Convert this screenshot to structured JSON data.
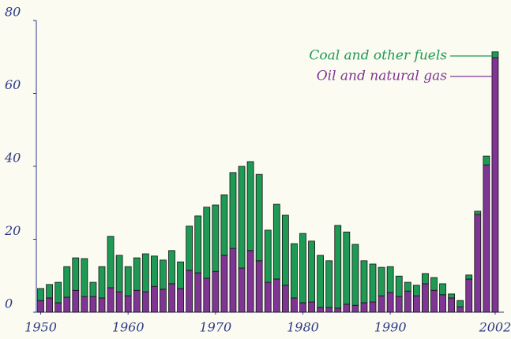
{
  "chart_data": {
    "type": "stacked_bar",
    "x": [
      1950,
      1951,
      1952,
      1953,
      1954,
      1955,
      1956,
      1957,
      1958,
      1959,
      1960,
      1961,
      1962,
      1963,
      1964,
      1965,
      1966,
      1967,
      1968,
      1969,
      1970,
      1971,
      1972,
      1973,
      1974,
      1975,
      1976,
      1977,
      1978,
      1979,
      1980,
      1981,
      1982,
      1983,
      1984,
      1985,
      1986,
      1987,
      1988,
      1989,
      1990,
      1991,
      1992,
      1993,
      1994,
      1995,
      1996,
      1997,
      1998,
      1999,
      2000,
      2001,
      2002
    ],
    "series": [
      {
        "name": "Oil and natural gas",
        "color": "#7e3593",
        "values": [
          3.2,
          3.9,
          2.6,
          4.1,
          6,
          4.3,
          4.3,
          3.9,
          6.7,
          5.6,
          4.5,
          6,
          5.6,
          7.1,
          6.3,
          7.8,
          6.5,
          11.5,
          10.8,
          9.3,
          11.2,
          15.6,
          17.5,
          12.1,
          16.9,
          14.1,
          8.2,
          9.1,
          7.4,
          3.9,
          2.6,
          2.8,
          1.3,
          1.3,
          1.1,
          2.2,
          1.9,
          2.6,
          2.8,
          4.5,
          5.4,
          4.3,
          5.8,
          4.5,
          7.8,
          6,
          4.8,
          3.9,
          1.5,
          9.1,
          26.8,
          40.4,
          69.8
        ]
      },
      {
        "name": "Coal and other fuels",
        "color": "#1f9a55",
        "values": [
          3.3,
          3.7,
          5.6,
          8.4,
          8.9,
          10.4,
          3.9,
          8.6,
          14.1,
          10,
          8,
          8.9,
          10.4,
          8.3,
          8,
          9.1,
          7.3,
          12.1,
          15.6,
          19.5,
          18.2,
          16.6,
          20.8,
          27.9,
          24.4,
          23.7,
          14.3,
          20.5,
          19.2,
          14.9,
          19,
          16.7,
          14.3,
          12.8,
          22.7,
          19.8,
          16.7,
          11.5,
          10.4,
          7.8,
          7.1,
          5.6,
          2.4,
          2.9,
          2.8,
          3.5,
          3,
          1.1,
          1.7,
          1.1,
          0.9,
          2.4,
          1.6
        ]
      }
    ],
    "xlim": [
      1949.5,
      2003
    ],
    "xticks": [
      1950,
      1960,
      1970,
      1980,
      1990,
      2002
    ],
    "ylim": [
      0,
      80
    ],
    "yticks": [
      0,
      20,
      40,
      60,
      80
    ],
    "grid": false
  }
}
